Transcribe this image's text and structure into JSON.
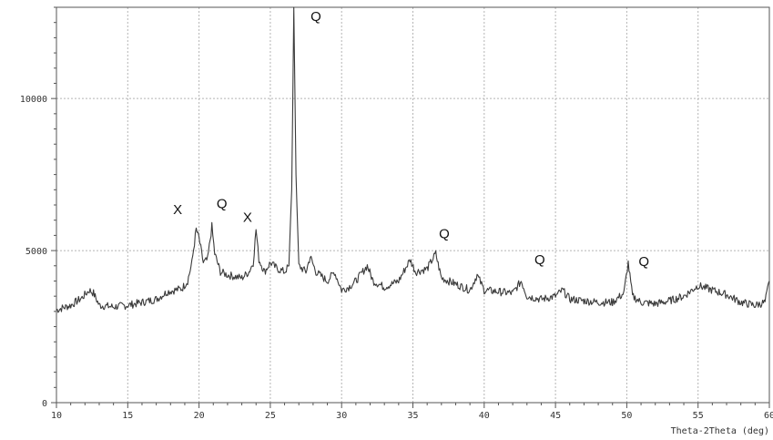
{
  "chart_data": {
    "type": "line",
    "title": "",
    "xlabel": "Theta-2Theta (deg)",
    "ylabel": "",
    "xlim": [
      10,
      60
    ],
    "ylim": [
      0,
      13000
    ],
    "x_ticks": [
      10,
      15,
      20,
      25,
      30,
      35,
      40,
      45,
      50,
      55,
      60
    ],
    "x_tick_labels": [
      "10",
      "15",
      "20",
      "25",
      "30",
      "35",
      "40",
      "45",
      "50",
      "55",
      "60"
    ],
    "y_ticks": [
      0,
      5000,
      10000
    ],
    "y_tick_labels": [
      "0",
      "5000",
      "10000"
    ],
    "grid": true,
    "legend": "none",
    "colors": {
      "line": "#3a3a3a",
      "grid": "#b5b5b5",
      "axis": "#555555"
    },
    "series": [
      {
        "points": [
          [
            10.0,
            3050
          ],
          [
            11.0,
            3200
          ],
          [
            11.8,
            3450
          ],
          [
            12.3,
            3700
          ],
          [
            12.6,
            3600
          ],
          [
            13.0,
            3200
          ],
          [
            14.0,
            3150
          ],
          [
            15.0,
            3200
          ],
          [
            16.0,
            3300
          ],
          [
            17.0,
            3400
          ],
          [
            17.8,
            3650
          ],
          [
            18.3,
            3700
          ],
          [
            18.8,
            3750
          ],
          [
            19.2,
            4000
          ],
          [
            19.5,
            4600
          ],
          [
            19.8,
            5700
          ],
          [
            20.0,
            5400
          ],
          [
            20.3,
            4600
          ],
          [
            20.6,
            4700
          ],
          [
            20.9,
            5800
          ],
          [
            21.1,
            4900
          ],
          [
            21.5,
            4300
          ],
          [
            22.0,
            4200
          ],
          [
            22.5,
            4150
          ],
          [
            23.0,
            4100
          ],
          [
            23.5,
            4300
          ],
          [
            23.8,
            4600
          ],
          [
            24.0,
            5700
          ],
          [
            24.2,
            4700
          ],
          [
            24.6,
            4300
          ],
          [
            25.0,
            4600
          ],
          [
            25.5,
            4400
          ],
          [
            26.0,
            4300
          ],
          [
            26.3,
            4500
          ],
          [
            26.5,
            7000
          ],
          [
            26.65,
            13000
          ],
          [
            26.8,
            7500
          ],
          [
            27.0,
            4500
          ],
          [
            27.5,
            4300
          ],
          [
            27.8,
            4800
          ],
          [
            28.2,
            4300
          ],
          [
            29.0,
            4000
          ],
          [
            29.5,
            4300
          ],
          [
            30.0,
            3700
          ],
          [
            30.5,
            3800
          ],
          [
            31.0,
            4000
          ],
          [
            31.8,
            4500
          ],
          [
            32.2,
            4000
          ],
          [
            33.0,
            3800
          ],
          [
            34.0,
            4000
          ],
          [
            34.8,
            4700
          ],
          [
            35.2,
            4300
          ],
          [
            36.0,
            4400
          ],
          [
            36.6,
            4900
          ],
          [
            37.0,
            4100
          ],
          [
            38.0,
            3900
          ],
          [
            39.0,
            3700
          ],
          [
            39.5,
            4200
          ],
          [
            40.0,
            3700
          ],
          [
            41.0,
            3650
          ],
          [
            42.0,
            3600
          ],
          [
            42.6,
            4000
          ],
          [
            43.0,
            3500
          ],
          [
            44.0,
            3400
          ],
          [
            45.0,
            3500
          ],
          [
            45.5,
            3700
          ],
          [
            46.0,
            3400
          ],
          [
            47.0,
            3350
          ],
          [
            48.0,
            3300
          ],
          [
            49.0,
            3300
          ],
          [
            49.8,
            3600
          ],
          [
            50.1,
            4600
          ],
          [
            50.4,
            3500
          ],
          [
            51.0,
            3300
          ],
          [
            52.0,
            3250
          ],
          [
            53.0,
            3350
          ],
          [
            54.0,
            3500
          ],
          [
            55.0,
            3850
          ],
          [
            56.0,
            3700
          ],
          [
            57.0,
            3550
          ],
          [
            58.0,
            3300
          ],
          [
            59.0,
            3200
          ],
          [
            59.7,
            3300
          ],
          [
            60.0,
            4000
          ]
        ]
      }
    ],
    "annotations": [
      {
        "text": "X",
        "x": 18.5,
        "y": 6200
      },
      {
        "text": "Q",
        "x": 21.6,
        "y": 6400
      },
      {
        "text": "X",
        "x": 23.4,
        "y": 5950
      },
      {
        "text": "Q",
        "x": 28.2,
        "y": 12550
      },
      {
        "text": "Q",
        "x": 37.2,
        "y": 5400
      },
      {
        "text": "Q",
        "x": 43.9,
        "y": 4550
      },
      {
        "text": "Q",
        "x": 51.2,
        "y": 4500
      }
    ]
  }
}
